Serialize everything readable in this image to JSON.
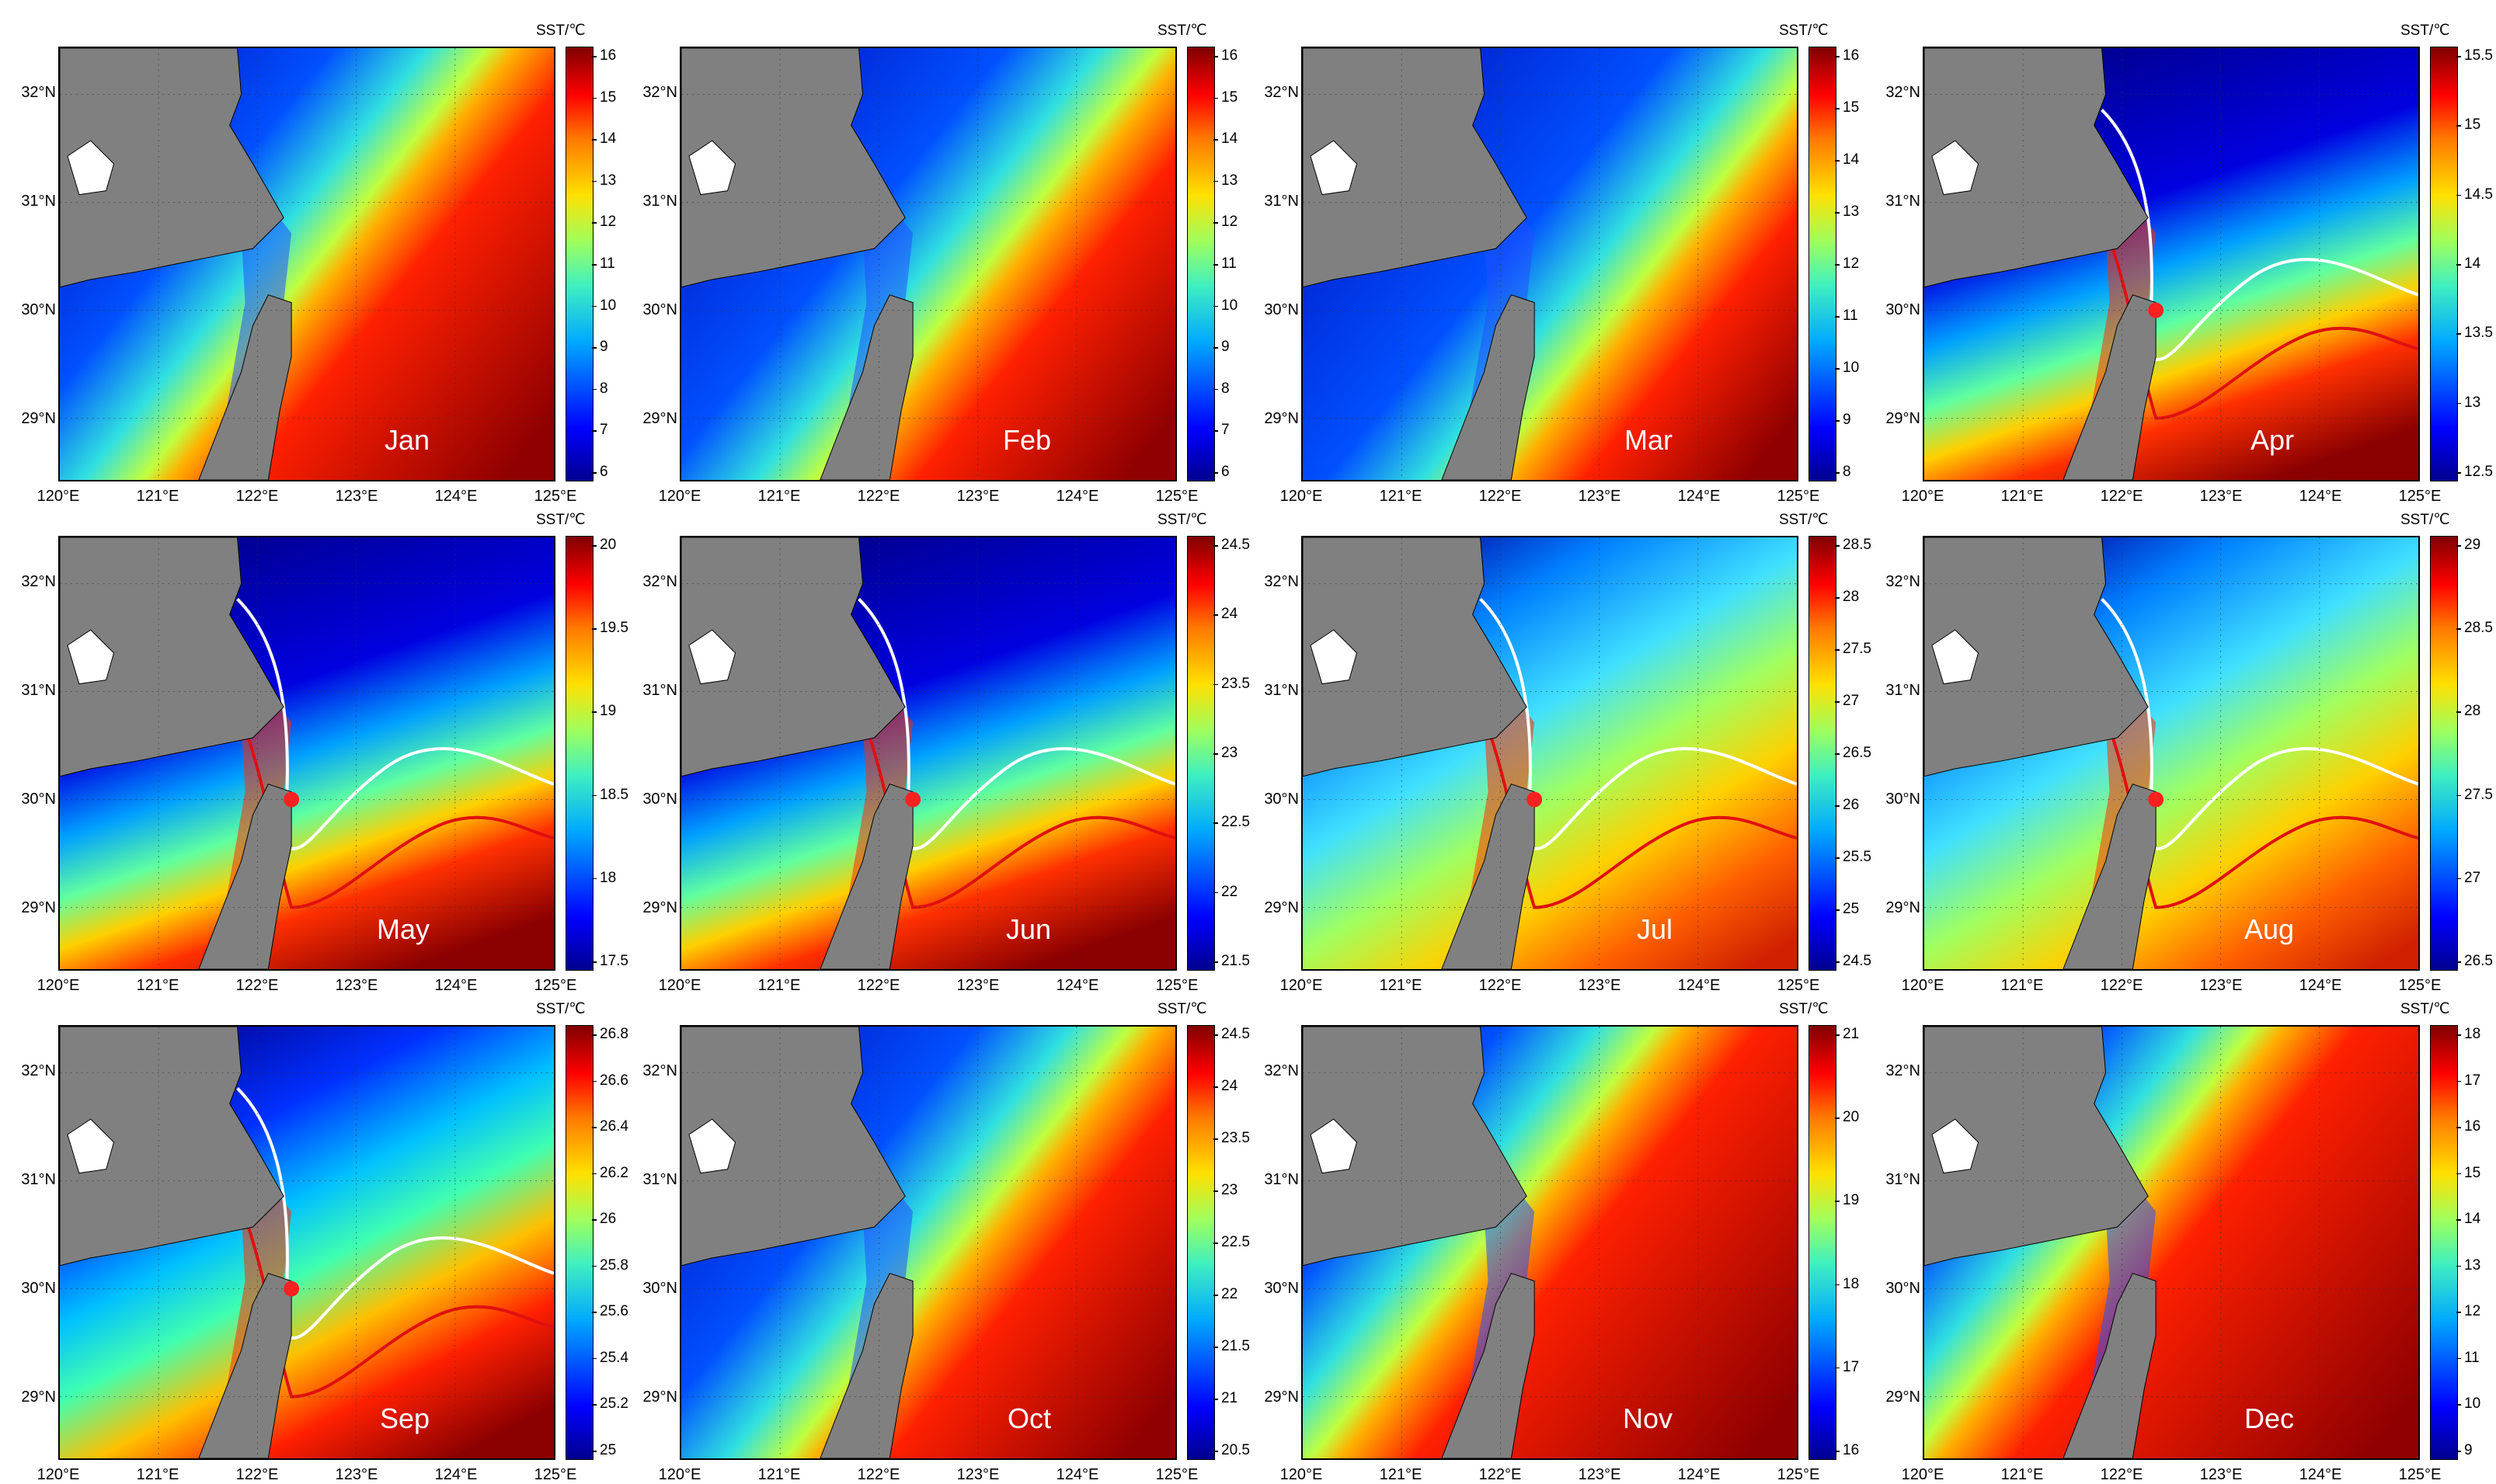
{
  "colorbar_title": "SST/℃",
  "lat_labels": [
    "32°N",
    "31°N",
    "30°N",
    "29°N"
  ],
  "lon_labels": [
    "120°E",
    "121°E",
    "122°E",
    "123°E",
    "124°E",
    "125°E"
  ],
  "colors": {
    "land": "#808080",
    "warm": "#8b0000",
    "cold": "#00008b",
    "white_contour": "#ffffff",
    "red_contour": "#e01010",
    "marker": "#ff2020"
  },
  "panels": [
    {
      "month": "Jan",
      "colorbar_ticks": [
        "16",
        "15",
        "14",
        "13",
        "12",
        "11",
        "10",
        "9",
        "8",
        "7",
        "6"
      ],
      "pattern": "winter",
      "front": 0.55
    },
    {
      "month": "Feb",
      "colorbar_ticks": [
        "16",
        "15",
        "14",
        "13",
        "12",
        "11",
        "10",
        "9",
        "8",
        "7",
        "6"
      ],
      "pattern": "winter",
      "front": 0.62
    },
    {
      "month": "Mar",
      "colorbar_ticks": [
        "16",
        "15",
        "14",
        "13",
        "12",
        "11",
        "10",
        "9",
        "8"
      ],
      "pattern": "winter",
      "front": 0.68
    },
    {
      "month": "Apr",
      "colorbar_ticks": [
        "15.5",
        "15",
        "14.5",
        "14",
        "13.5",
        "13",
        "12.5"
      ],
      "pattern": "spring",
      "marker": true
    },
    {
      "month": "May",
      "colorbar_ticks": [
        "20",
        "19.5",
        "19",
        "18.5",
        "18",
        "17.5"
      ],
      "pattern": "spring",
      "marker": true
    },
    {
      "month": "Jun",
      "colorbar_ticks": [
        "24.5",
        "24",
        "23.5",
        "23",
        "22.5",
        "22",
        "21.5"
      ],
      "pattern": "spring",
      "marker": true
    },
    {
      "month": "Jul",
      "colorbar_ticks": [
        "28.5",
        "28",
        "27.5",
        "27",
        "26.5",
        "26",
        "25.5",
        "25",
        "24.5"
      ],
      "pattern": "summer",
      "marker": true
    },
    {
      "month": "Aug",
      "colorbar_ticks": [
        "29",
        "28.5",
        "28",
        "27.5",
        "27",
        "26.5"
      ],
      "pattern": "summer",
      "marker": true
    },
    {
      "month": "Sep",
      "colorbar_ticks": [
        "26.8",
        "26.6",
        "26.4",
        "26.2",
        "26",
        "25.8",
        "25.6",
        "25.4",
        "25.2",
        "25"
      ],
      "pattern": "autumn",
      "marker": true
    },
    {
      "month": "Oct",
      "colorbar_ticks": [
        "24.5",
        "24",
        "23.5",
        "23",
        "22.5",
        "22",
        "21.5",
        "21",
        "20.5"
      ],
      "pattern": "winter",
      "front": 0.58
    },
    {
      "month": "Nov",
      "colorbar_ticks": [
        "21",
        "20",
        "19",
        "18",
        "17",
        "16"
      ],
      "pattern": "winter",
      "front": 0.45
    },
    {
      "month": "Dec",
      "colorbar_ticks": [
        "18",
        "17",
        "16",
        "15",
        "14",
        "13",
        "12",
        "11",
        "10",
        "9"
      ],
      "pattern": "winter",
      "front": 0.42
    }
  ]
}
